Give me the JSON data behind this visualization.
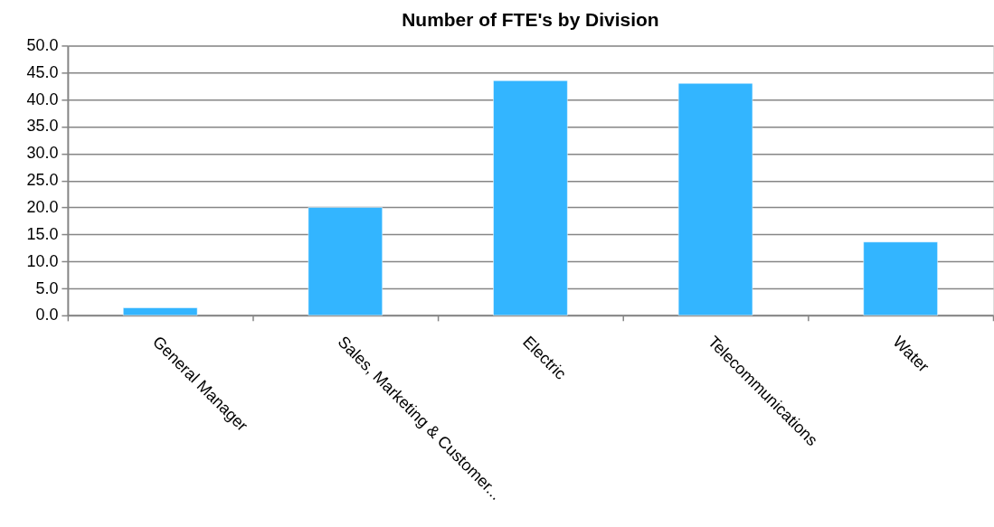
{
  "chart_data": {
    "type": "bar",
    "title": "Number of FTE's by Division",
    "categories": [
      "General Manager",
      "Sales, Marketing & Customer...",
      "Electric",
      "Telecommunications",
      "Water"
    ],
    "values": [
      1.4,
      20.0,
      43.5,
      43.0,
      13.6
    ],
    "color": "#33b5ff",
    "ylim": [
      0,
      50
    ],
    "yticks": [
      {
        "value": 0,
        "label": "0.0"
      },
      {
        "value": 5,
        "label": "5.0"
      },
      {
        "value": 10,
        "label": "10.0"
      },
      {
        "value": 15,
        "label": "15.0"
      },
      {
        "value": 20,
        "label": "20.0"
      },
      {
        "value": 25,
        "label": "25.0"
      },
      {
        "value": 30,
        "label": "30.0"
      },
      {
        "value": 35,
        "label": "35.0"
      },
      {
        "value": 40,
        "label": "40.0"
      },
      {
        "value": 45,
        "label": "45.0"
      },
      {
        "value": 50,
        "label": "50.0"
      }
    ],
    "grid": "y"
  }
}
